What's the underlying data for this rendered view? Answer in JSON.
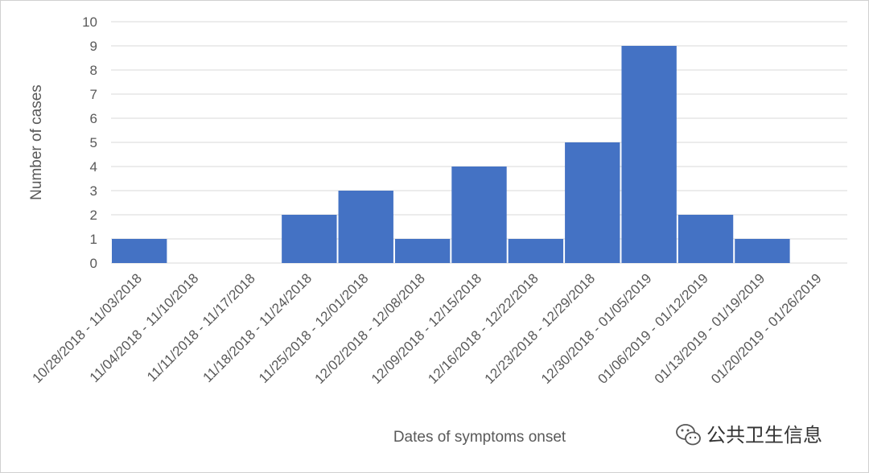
{
  "chart_data": {
    "type": "bar",
    "categories": [
      "10/28/2018 - 11/03/2018",
      "11/04/2018 - 11/10/2018",
      "11/11/2018 - 11/17/2018",
      "11/18/2018 - 11/24/2018",
      "11/25/2018 - 12/01/2018",
      "12/02/2018 - 12/08/2018",
      "12/09/2018 - 12/15/2018",
      "12/16/2018 - 12/22/2018",
      "12/23/2018 - 12/29/2018",
      "12/30/2018 - 01/05/2019",
      "01/06/2019 - 01/12/2019",
      "01/13/2019 - 01/19/2019",
      "01/20/2019 - 01/26/2019"
    ],
    "values": [
      1,
      0,
      0,
      2,
      3,
      1,
      4,
      1,
      5,
      9,
      2,
      1,
      0
    ],
    "xlabel": "Dates of symptoms onset",
    "ylabel": "Number of cases",
    "ylim": [
      0,
      10
    ],
    "yticks": [
      0,
      1,
      2,
      3,
      4,
      5,
      6,
      7,
      8,
      9,
      10
    ],
    "grid": true,
    "bar_color": "#4472C4",
    "gridline_color": "#d9d9d9"
  },
  "watermark": {
    "text": "公共卫生信息",
    "icon": "wechat-icon"
  }
}
